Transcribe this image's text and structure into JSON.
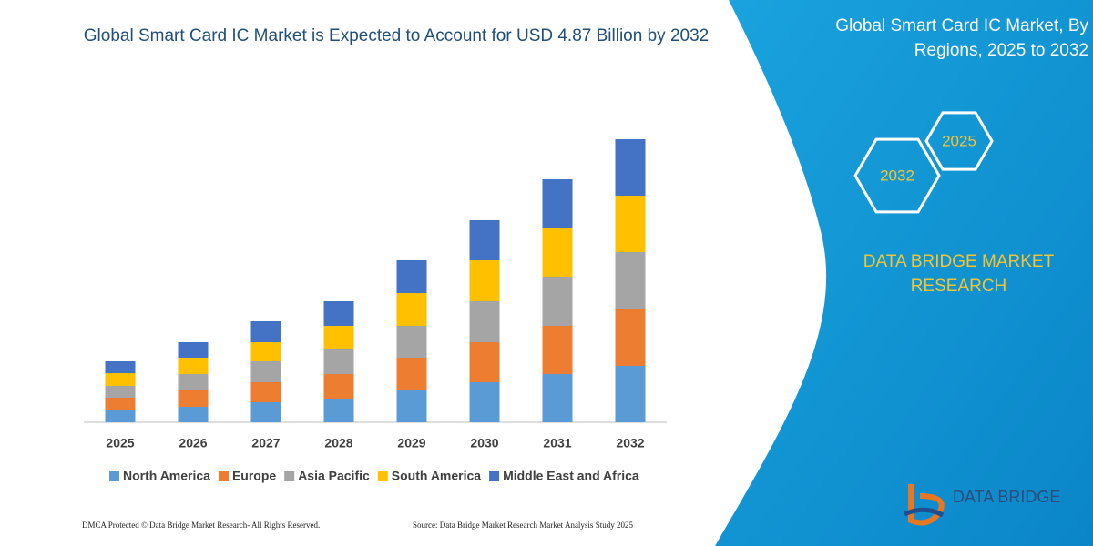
{
  "chart_data": {
    "type": "stacked-bar",
    "title": "Global Smart Card IC Market is Expected to Account for USD 4.87 Billion by 2032",
    "categories": [
      "2025",
      "2026",
      "2027",
      "2028",
      "2029",
      "2030",
      "2031",
      "2032"
    ],
    "series": [
      {
        "name": "North America",
        "color": "#5b9bd5",
        "values": [
          13,
          17,
          22,
          26,
          35,
          44,
          53,
          62
        ]
      },
      {
        "name": "Europe",
        "color": "#ed7d31",
        "values": [
          14,
          18,
          22,
          27,
          36,
          44,
          53,
          62
        ]
      },
      {
        "name": "Asia Pacific",
        "color": "#a5a5a5",
        "values": [
          13,
          18,
          23,
          27,
          35,
          45,
          54,
          63
        ]
      },
      {
        "name": "South America",
        "color": "#ffc000",
        "values": [
          14,
          18,
          21,
          26,
          36,
          45,
          53,
          62
        ]
      },
      {
        "name": "Middle East and Africa",
        "color": "#4472c4",
        "values": [
          13,
          17,
          23,
          27,
          36,
          44,
          54,
          62
        ]
      }
    ]
  },
  "panel": {
    "title": "Global Smart Card IC Market, By Regions, 2025 to 2032",
    "hexagons": [
      "2025",
      "2032"
    ],
    "brand": "DATA BRIDGE MARKET RESEARCH"
  },
  "footer": {
    "left": "DMCA Protected © Data Bridge Market Research-  All Rights Reserved.",
    "right": "Source: Data Bridge Market Research  Market Analysis Study 2025"
  },
  "logo": "DATA BRIDGE"
}
